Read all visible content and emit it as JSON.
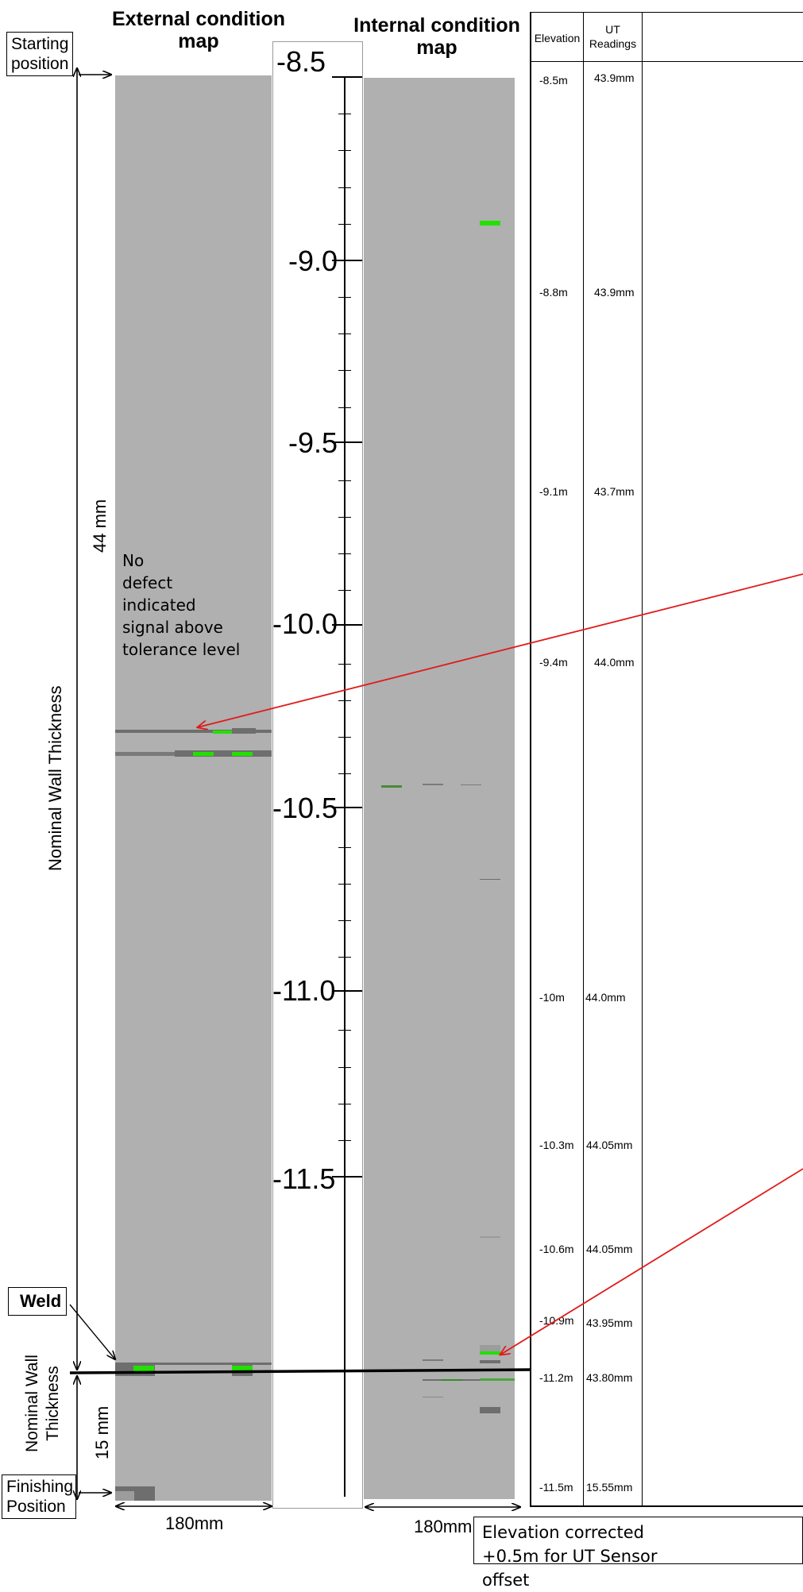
{
  "titles": {
    "external": [
      "External condition",
      "map"
    ],
    "internal": [
      "Internal condition",
      "map"
    ]
  },
  "labels": {
    "starting": [
      "Starting",
      "position"
    ],
    "finishing": [
      "Finishing",
      "Position"
    ],
    "weld": "Weld",
    "nominal_wall_thickness": "Nominal Wall Thickness",
    "thickness_44": "44 mm",
    "nominal_wall_thickness_lower": [
      "Nominal Wall",
      "Thickness"
    ],
    "thickness_15": "15 mm",
    "width_external": "180mm",
    "width_internal": "180mm"
  },
  "annotation": [
    "No",
    "defect indicated",
    "signal  above",
    "tolerance level"
  ],
  "footnote": [
    "Elevation corrected",
    "+0.5m for  UT Sensor",
    "offset"
  ],
  "scale": {
    "ticks": [
      {
        "label": "-8.5",
        "value": -8.5
      },
      {
        "label": "-9.0",
        "value": -9.0
      },
      {
        "label": "-9.5",
        "value": -9.5
      },
      {
        "label": "-10.0",
        "value": -10.0
      },
      {
        "label": "-10.5",
        "value": -10.5
      },
      {
        "label": "-11.0",
        "value": -11.0
      },
      {
        "label": "-11.5",
        "value": -11.5
      }
    ],
    "range": [
      -8.5,
      -11.5
    ],
    "minor_step": 0.1
  },
  "table": {
    "headers": {
      "elevation": "Elevation",
      "ut": [
        "UT",
        "Readings"
      ]
    },
    "rows": [
      {
        "elevation": "-8.5m",
        "ut": "43.9mm"
      },
      {
        "elevation": "-8.8m",
        "ut": "43.9mm"
      },
      {
        "elevation": "-9.1m",
        "ut": "43.7mm"
      },
      {
        "elevation": "-9.4m",
        "ut": "44.0mm"
      },
      {
        "elevation": "-10m",
        "ut": "44.0mm"
      },
      {
        "elevation": "-10.3m",
        "ut": "44.05mm"
      },
      {
        "elevation": "-10.6m",
        "ut": "44.05mm"
      },
      {
        "elevation": "-10.9m",
        "ut": "43.95mm"
      },
      {
        "elevation": "-11.2m",
        "ut": "43.80mm"
      },
      {
        "elevation": "-11.5m",
        "ut": "15.55mm"
      }
    ]
  },
  "colors": {
    "map_fill": "#b0b0b0",
    "defect_dark": "#6e6e6e",
    "defect_green": "#22e000",
    "arrow_red": "#e01b1b"
  }
}
